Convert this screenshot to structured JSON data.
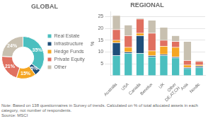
{
  "chart_data": [
    {
      "type": "doughnut",
      "title": "GLOBAL",
      "categories": [
        "Real Estate",
        "Infrastructure",
        "Hedge Funds",
        "Private Equity",
        "Other"
      ],
      "values": [
        35,
        5,
        15,
        21,
        24
      ],
      "value_labels": [
        "35%",
        "5%",
        "15%",
        "21%",
        "24%"
      ],
      "colors": [
        "#4BBFBF",
        "#1F4E79",
        "#F5A623",
        "#E07060",
        "#C8C0B0"
      ],
      "data_labels": true,
      "legend": "right"
    },
    {
      "type": "bar",
      "title": "REGIONAL",
      "ylabel": "%",
      "stacked": true,
      "categories": [
        "Australia",
        "USA",
        "Canada",
        "Benelux",
        "UK",
        "Other\nDE,AT,CH",
        "Asia",
        "Nordic"
      ],
      "series": [
        {
          "name": "Real Estate",
          "color": "#4BBFBF",
          "values": [
            8.5,
            9.5,
            9.5,
            8.0,
            8.5,
            7.5,
            3.0,
            3.5
          ]
        },
        {
          "name": "Infrastructure",
          "color": "#1F4E79",
          "values": [
            5.5,
            0.5,
            7.5,
            0.5,
            0.5,
            0.5,
            0.5,
            0.5
          ]
        },
        {
          "name": "Hedge Funds",
          "color": "#F5A623",
          "values": [
            1.0,
            2.0,
            1.0,
            2.0,
            3.5,
            4.0,
            1.0,
            0.5
          ]
        },
        {
          "name": "Private Equity",
          "color": "#E07060",
          "values": [
            4.5,
            5.0,
            6.0,
            7.5,
            2.5,
            2.5,
            2.0,
            1.5
          ]
        },
        {
          "name": "Other",
          "color": "#C8C0B0",
          "values": [
            6.0,
            4.5,
            0.5,
            5.5,
            5.5,
            2.5,
            8.0,
            0.5
          ]
        }
      ],
      "ylim": [
        0,
        27
      ],
      "yticks": [
        5,
        10,
        15,
        20,
        25
      ],
      "grid": true,
      "annotations": [
        "Note: Based on 138 questionnaires in Survey of trends. Calculated on % of total allocated assets in each category, not number of respondents.",
        "Source: MSCI"
      ]
    }
  ]
}
